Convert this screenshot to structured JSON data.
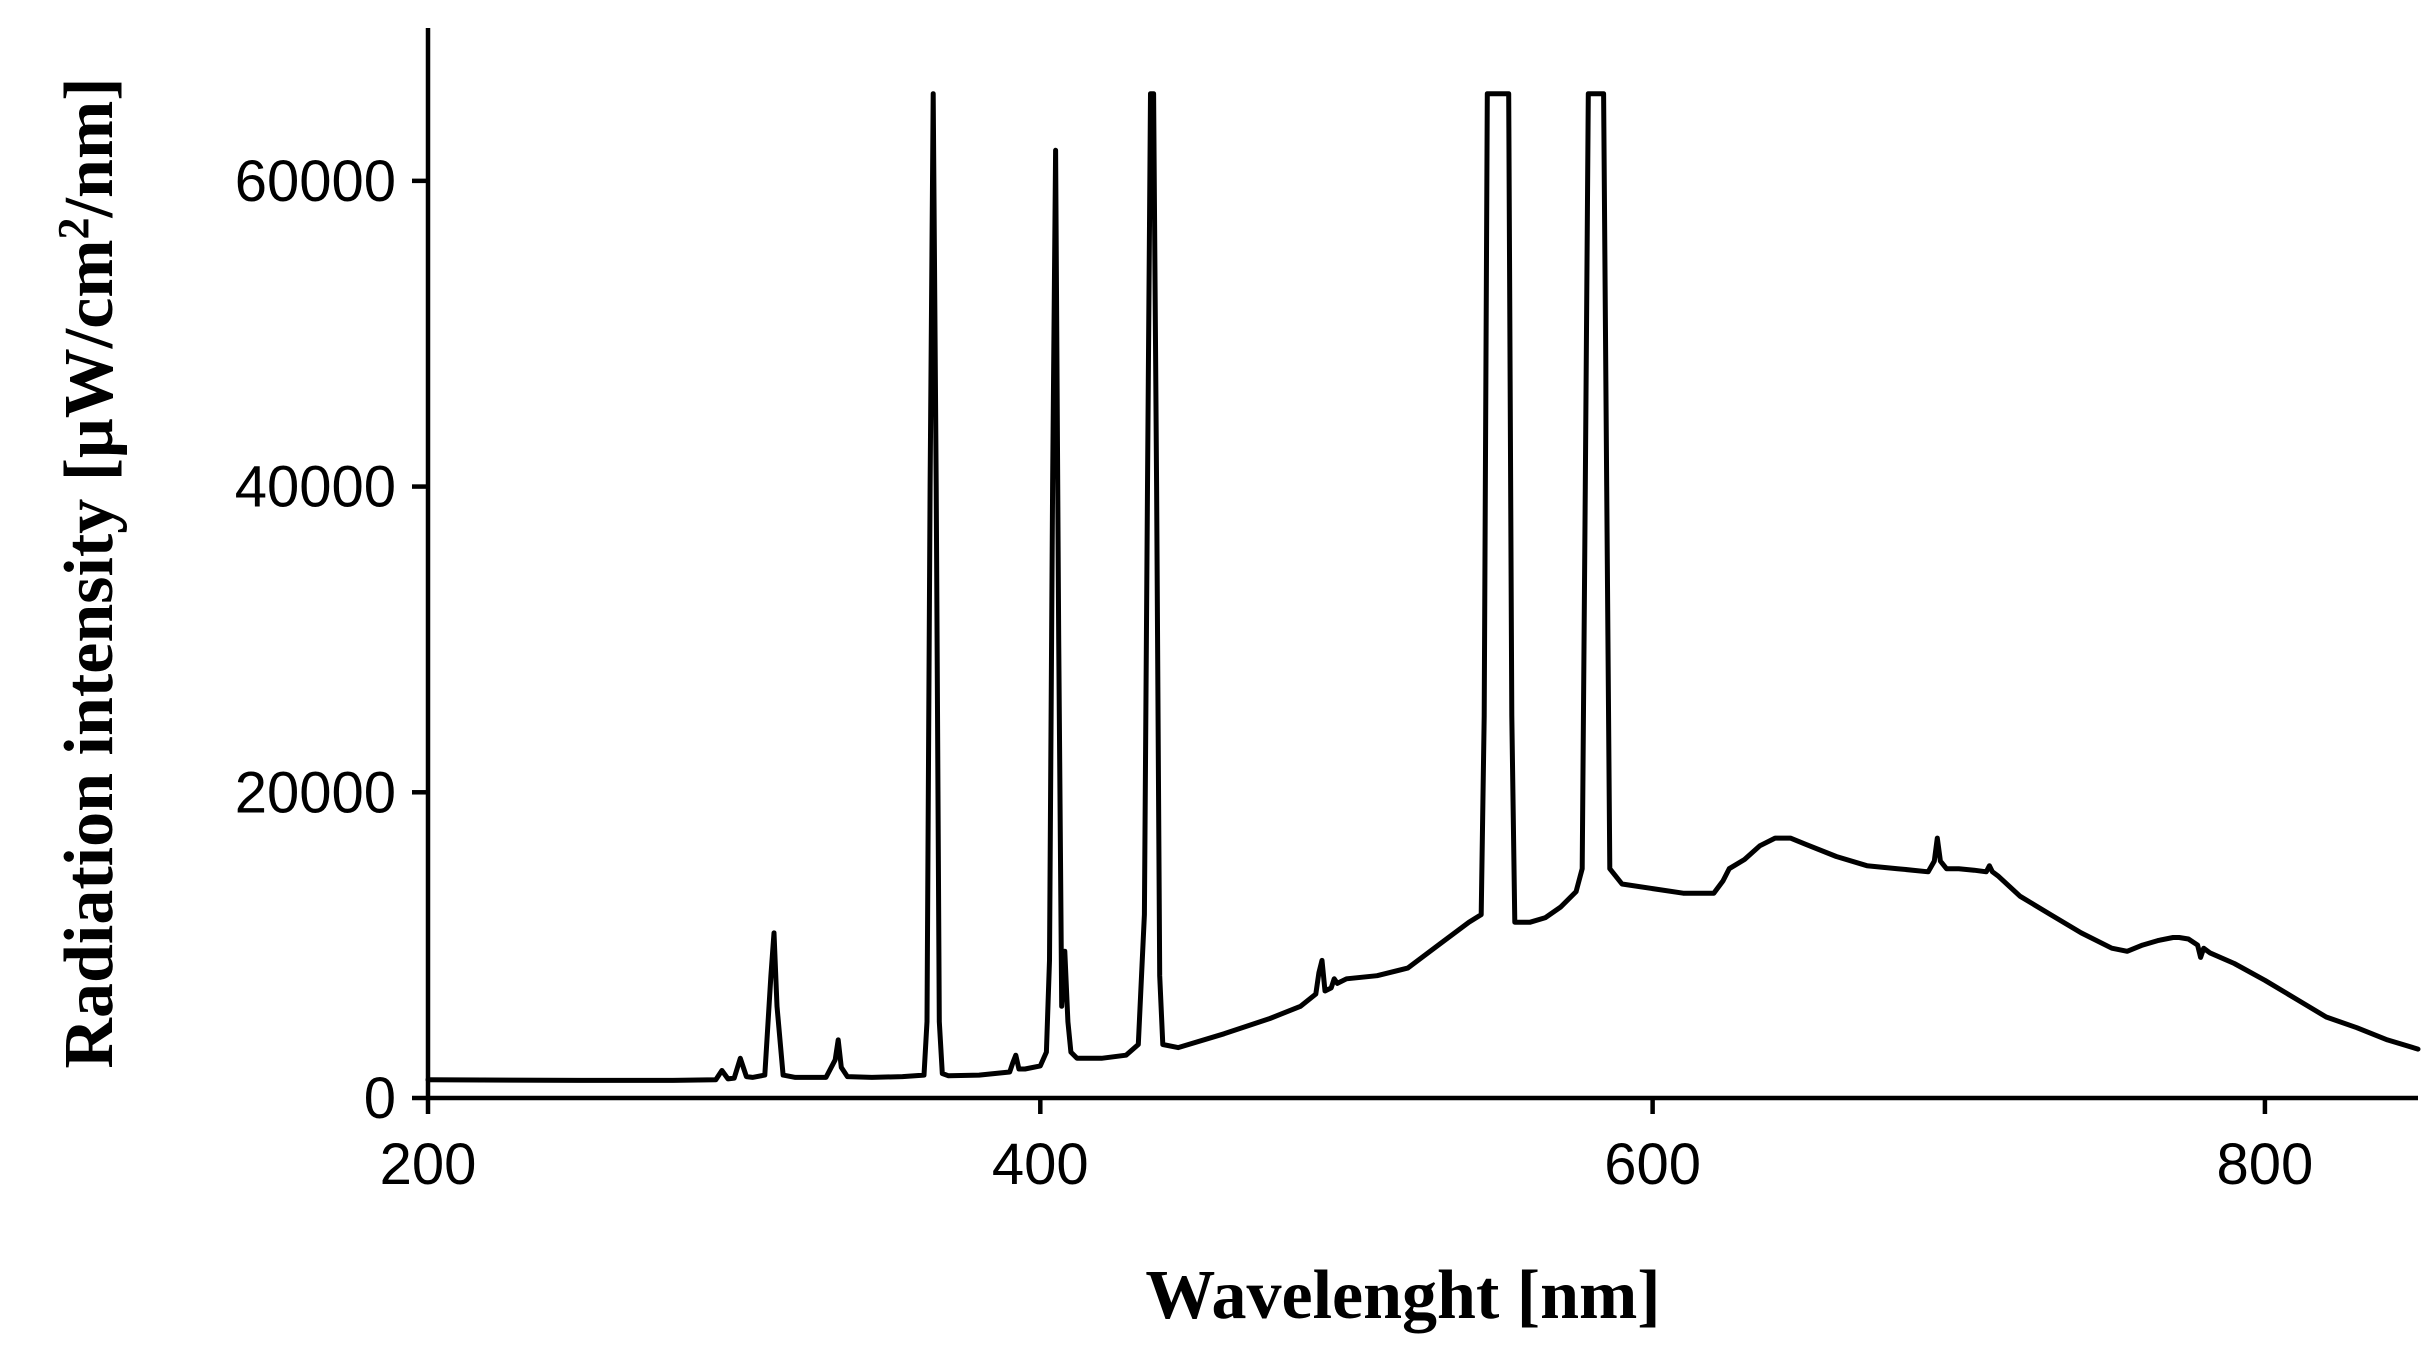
{
  "chart_data": {
    "type": "line",
    "title": "",
    "xlabel": "Wavelenght [nm]",
    "ylabel": "Radiation intensity [μW/cm²/nm]",
    "ylabel_parts": {
      "before": "Radiation intensity [μW/cm",
      "superscript": "2",
      "after": "/nm]"
    },
    "xlim": [
      200,
      850
    ],
    "ylim": [
      0,
      70000
    ],
    "x_ticks": [
      200,
      400,
      600,
      800
    ],
    "y_ticks": [
      0,
      20000,
      40000,
      60000
    ],
    "x_tick_labels": [
      "200",
      "400",
      "600",
      "800"
    ],
    "y_tick_labels": [
      "0",
      "20000",
      "40000",
      "60000"
    ],
    "grid": false,
    "legend": "none",
    "line_color": "#000000",
    "series": [
      {
        "x": [
          200,
          250,
          280,
          294,
          296,
          298,
          300,
          302,
          304,
          306,
          310,
          312,
          313,
          314,
          316,
          320,
          330,
          333,
          334,
          335,
          337,
          345,
          355,
          362,
          363,
          364,
          365,
          366,
          367,
          368,
          370,
          380,
          390,
          391,
          392,
          393,
          395,
          400,
          402,
          403,
          404,
          405,
          406,
          407,
          408,
          409,
          410,
          412,
          420,
          428,
          432,
          434,
          435,
          436,
          437,
          438,
          439,
          440,
          445,
          460,
          475,
          485,
          490,
          491,
          492,
          493,
          495,
          496,
          497,
          500,
          510,
          520,
          530,
          540,
          544,
          545,
          546,
          547,
          553,
          554,
          555,
          560,
          565,
          570,
          575,
          577,
          578,
          579,
          584,
          585,
          586,
          590,
          600,
          610,
          620,
          623,
          625,
          630,
          635,
          640,
          645,
          650,
          660,
          670,
          680,
          685,
          690,
          692,
          693,
          694,
          696,
          700,
          705,
          709,
          710,
          711,
          713,
          720,
          730,
          740,
          750,
          755,
          760,
          765,
          770,
          772,
          775,
          778,
          779,
          780,
          782,
          790,
          800,
          810,
          820,
          830,
          840,
          850
        ],
        "y": [
          1200,
          1150,
          1150,
          1200,
          1800,
          1250,
          1300,
          2600,
          1400,
          1350,
          1500,
          8000,
          10800,
          6000,
          1500,
          1350,
          1350,
          2500,
          3800,
          2000,
          1400,
          1350,
          1400,
          1500,
          5000,
          40000,
          65700,
          40000,
          5000,
          1600,
          1450,
          1500,
          1700,
          2300,
          2800,
          1900,
          1900,
          2100,
          3000,
          9000,
          40000,
          62000,
          30000,
          6000,
          9600,
          5000,
          3000,
          2600,
          2600,
          2800,
          3500,
          12000,
          40000,
          65700,
          65700,
          40000,
          8000,
          3500,
          3300,
          4200,
          5200,
          6000,
          6800,
          8200,
          9000,
          7000,
          7200,
          7800,
          7500,
          7800,
          8000,
          8500,
          10000,
          11500,
          12000,
          25000,
          65700,
          65700,
          65700,
          25000,
          11500,
          11500,
          11800,
          12500,
          13500,
          15000,
          40000,
          65700,
          65700,
          40000,
          15000,
          14000,
          13700,
          13400,
          13400,
          14200,
          15000,
          15600,
          16500,
          17000,
          17000,
          16600,
          15800,
          15200,
          15000,
          14900,
          14800,
          15500,
          17000,
          15500,
          15000,
          15000,
          14900,
          14800,
          15200,
          14800,
          14500,
          13200,
          12000,
          10800,
          9800,
          9600,
          10000,
          10300,
          10500,
          10500,
          10400,
          10000,
          9200,
          9800,
          9500,
          8800,
          7700,
          6500,
          5300,
          4600,
          3800,
          3200
        ]
      }
    ]
  }
}
